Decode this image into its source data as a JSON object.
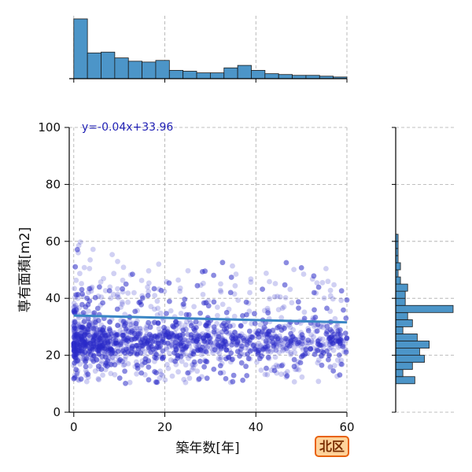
{
  "chart_data": {
    "type": "scatter",
    "xlabel": "築年数[年]",
    "ylabel": "専有面積[m2]",
    "xlim": [
      -1,
      60
    ],
    "ylim": [
      0,
      100
    ],
    "xticks": [
      0,
      20,
      40,
      60
    ],
    "yticks": [
      0,
      20,
      40,
      60,
      80,
      100
    ],
    "grid": true,
    "point_color": "#2b2bc8",
    "regression": {
      "slope": -0.04,
      "intercept": 33.96,
      "label": "y=-0.04x+33.96",
      "color": "#3a86c4"
    },
    "marginal_x_hist": {
      "bin_width": 3,
      "bin_start": 0,
      "counts": [
        72,
        31,
        32,
        25,
        21,
        20,
        22,
        10,
        9,
        7,
        7,
        13,
        16,
        10,
        6,
        5,
        4,
        4,
        3,
        2
      ]
    },
    "marginal_y_hist": {
      "bin_width": 2.5,
      "bin_start": 10,
      "counts": [
        8,
        3,
        7,
        12,
        10,
        14,
        9,
        3,
        7,
        5,
        24,
        4,
        4,
        5,
        2,
        1,
        2,
        1,
        1,
        1,
        1,
        0,
        0,
        0,
        0,
        0,
        0,
        0,
        0,
        0,
        0,
        0,
        0,
        0,
        0,
        0
      ]
    }
  },
  "badge": {
    "label": "北区",
    "bg": "#ffd39b",
    "border": "#e8620e"
  }
}
